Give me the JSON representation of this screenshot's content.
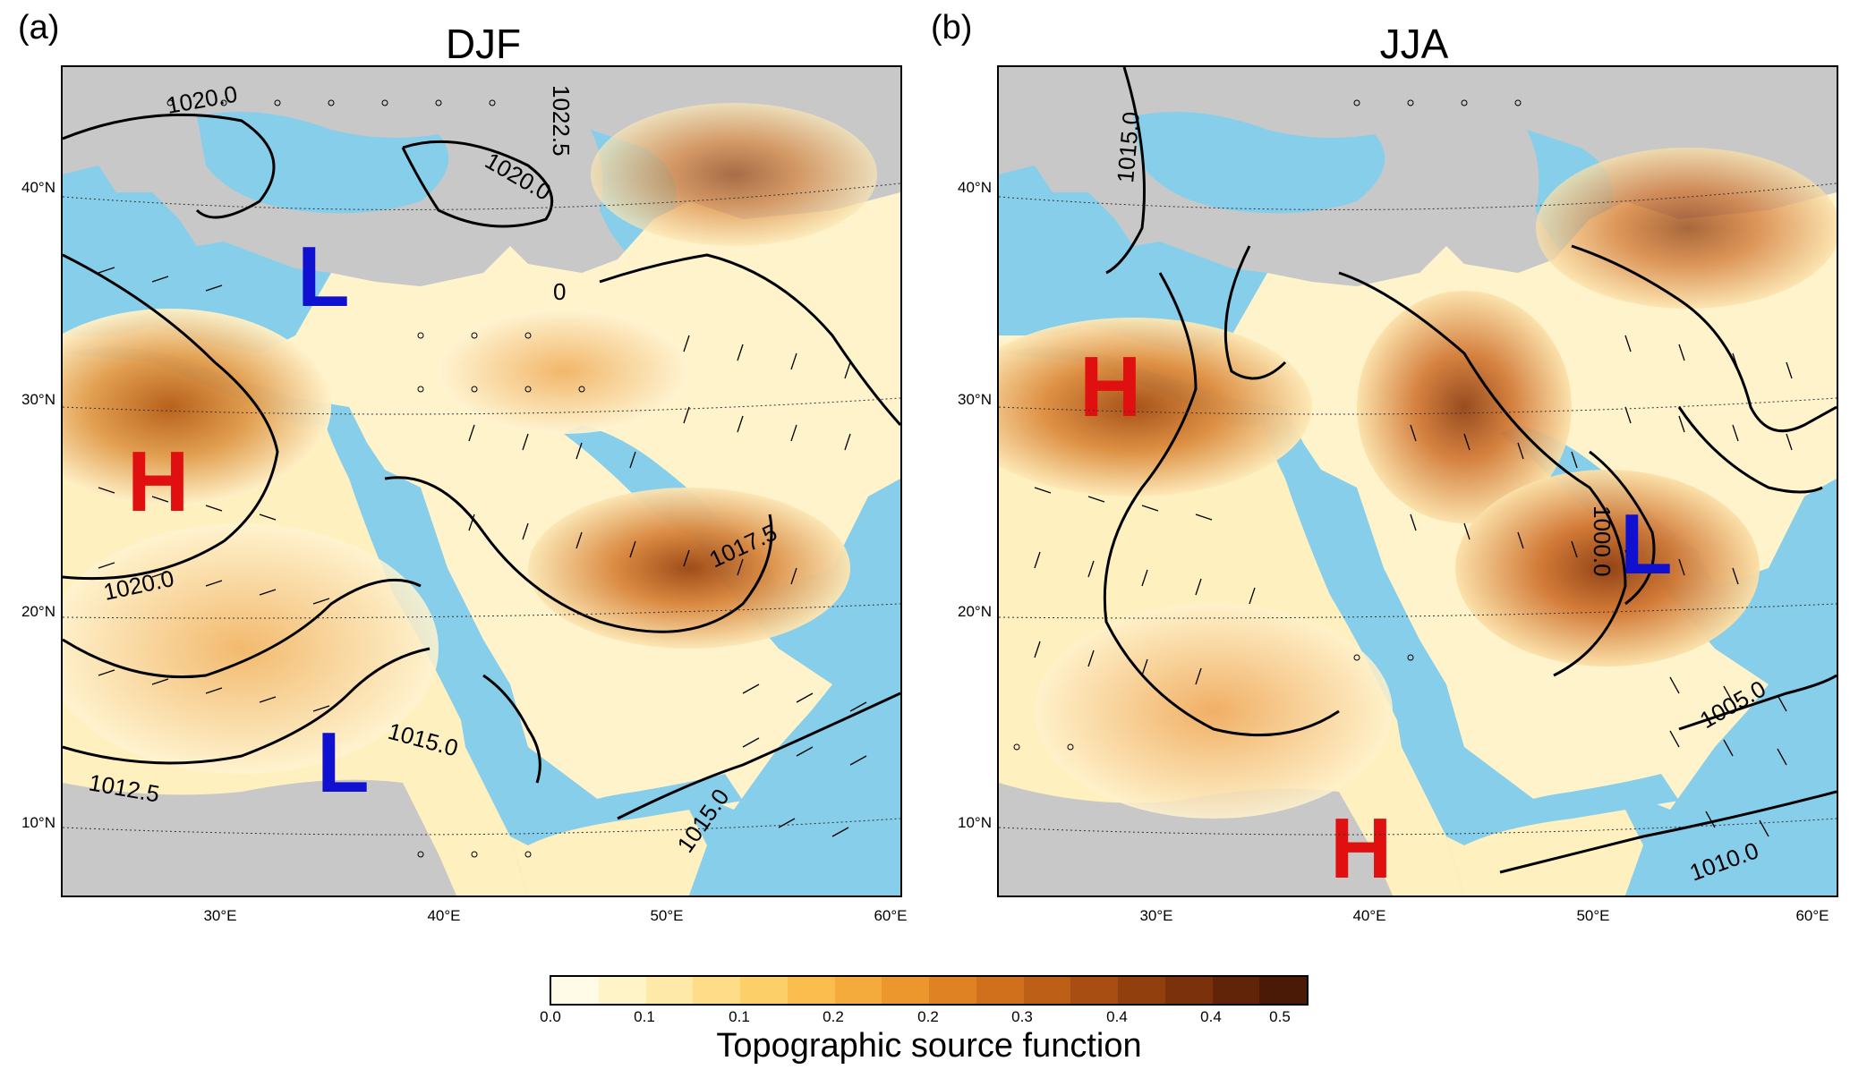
{
  "panels": [
    {
      "letter": "(a)",
      "title": "DJF",
      "isobars": [
        "1020.0",
        "1020.0",
        "1022.5",
        "0",
        "1017.5",
        "1020.0",
        "1015.0",
        "1012.5",
        "1015.0"
      ],
      "markers": [
        {
          "text": "L",
          "type": "low",
          "color": "#1010d0"
        },
        {
          "text": "H",
          "type": "high",
          "color": "#e01010"
        },
        {
          "text": "L",
          "type": "low",
          "color": "#1010d0"
        }
      ],
      "lat_labels": [
        "40°N",
        "30°N",
        "20°N",
        "10°N"
      ],
      "lon_labels": [
        "30°E",
        "40°E",
        "50°E",
        "60°E"
      ]
    },
    {
      "letter": "(b)",
      "title": "JJA",
      "isobars": [
        "1015.0",
        "1000.0",
        "1005.0",
        "1010.0"
      ],
      "markers": [
        {
          "text": "H",
          "type": "high",
          "color": "#e01010"
        },
        {
          "text": "L",
          "type": "low",
          "color": "#1010d0"
        },
        {
          "text": "H",
          "type": "high",
          "color": "#e01010"
        }
      ],
      "lat_labels": [
        "40°N",
        "30°N",
        "20°N",
        "10°N"
      ],
      "lon_labels": [
        "30°E",
        "40°E",
        "50°E",
        "60°E"
      ]
    }
  ],
  "colors": {
    "sea": "#87ceeb",
    "no_data_land": "#c8c8c8",
    "coastline": "#6a6a6a",
    "isobar": "#000000",
    "wind_barb": "#000000"
  },
  "colorbar": {
    "ticks": [
      "0.0",
      "0.1",
      "0.1",
      "0.2",
      "0.2",
      "0.3",
      "0.4",
      "0.4",
      "0.5"
    ],
    "label": "Topographic source function",
    "colors": [
      "#fffbe6",
      "#fff3c8",
      "#ffe9a8",
      "#ffdd88",
      "#fdcf68",
      "#fabd4e",
      "#f5aa3c",
      "#ec962e",
      "#df8224",
      "#d0701d",
      "#bd5f17",
      "#a84e12",
      "#923f0e",
      "#7b310b",
      "#622408",
      "#4a1a06"
    ]
  }
}
